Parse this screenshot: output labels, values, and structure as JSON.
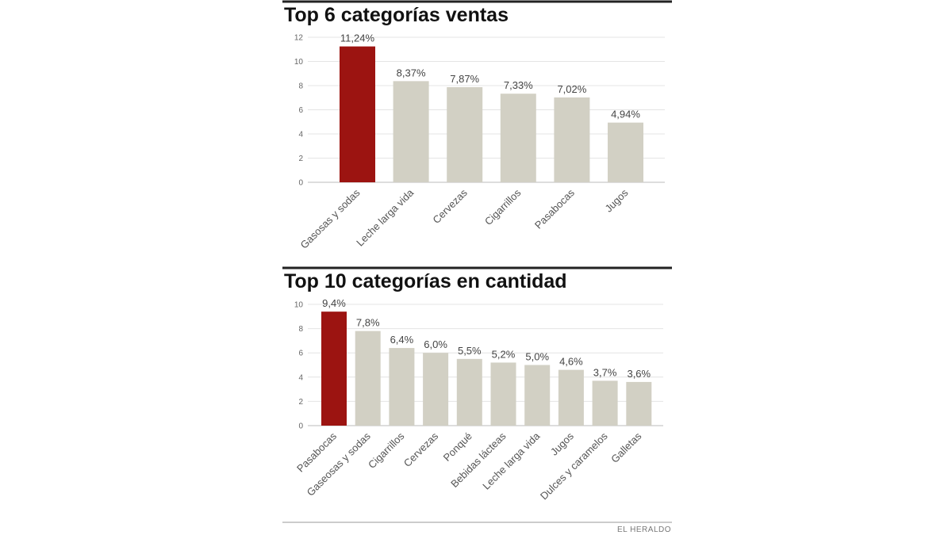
{
  "colors": {
    "highlight": "#9c1411",
    "bar": "#d2d0c4"
  },
  "credit": "EL HERALDO",
  "chart_data": [
    {
      "type": "bar",
      "title": "Top 6 categorías ventas",
      "categories": [
        "Gasosas y sodas",
        "Leche larga vida",
        "Cervezas",
        "Cigarrillos",
        "Pasabocas",
        "Jugos"
      ],
      "values": [
        11.24,
        8.37,
        7.87,
        7.33,
        7.02,
        4.94
      ],
      "value_labels": [
        "11,24%",
        "8,37%",
        "7,87%",
        "7,33%",
        "7,02%",
        "4,94%"
      ],
      "highlight_index": 0,
      "ylim": [
        0,
        12
      ],
      "yticks": [
        0,
        2,
        4,
        6,
        8,
        10,
        12
      ],
      "xlabel": "",
      "ylabel": "",
      "grid": true
    },
    {
      "type": "bar",
      "title": "Top 10 categorías en cantidad",
      "categories": [
        "Pasabocas",
        "Gaseosas y sodas",
        "Cigarrillos",
        "Cervezas",
        "Ponqué",
        "Bebidas lácteas",
        "Leche larga vida",
        "Jugos",
        "Dulces y caramelos",
        "Galletas"
      ],
      "values": [
        9.4,
        7.8,
        6.4,
        6.0,
        5.5,
        5.2,
        5.0,
        4.6,
        3.7,
        3.6
      ],
      "value_labels": [
        "9,4%",
        "7,8%",
        "6,4%",
        "6,0%",
        "5,5%",
        "5,2%",
        "5,0%",
        "4,6%",
        "3,7%",
        "3,6%"
      ],
      "highlight_index": 0,
      "ylim": [
        0,
        10
      ],
      "yticks": [
        0,
        2,
        4,
        6,
        8,
        10
      ],
      "xlabel": "",
      "ylabel": "",
      "grid": true
    }
  ]
}
